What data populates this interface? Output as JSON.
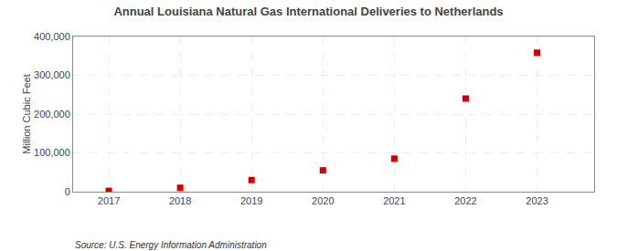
{
  "chart_data": {
    "type": "scatter",
    "title": "Annual Louisiana Natural Gas International Deliveries to Netherlands",
    "ylabel": "Million Cubic Feet",
    "annotations": [
      "Source: U.S. Energy Information Administration"
    ],
    "x": [
      2017,
      2018,
      2019,
      2020,
      2021,
      2022,
      2023
    ],
    "values": [
      2000,
      10000,
      30000,
      55000,
      85000,
      240000,
      358000
    ],
    "color": "#cc0000",
    "marker": "square",
    "xlim": [
      2016.5,
      2023.8
    ],
    "xticks": [
      2017,
      2018,
      2019,
      2020,
      2021,
      2022,
      2023
    ],
    "ylim": [
      0,
      400000
    ],
    "yticks": [
      0,
      {
        "value": 100000,
        "label": "100,000"
      },
      {
        "value": 200000,
        "label": "200,000"
      },
      {
        "value": 300000,
        "label": "300,000"
      },
      {
        "value": 400000,
        "label": "400,000"
      }
    ],
    "grid": true
  }
}
